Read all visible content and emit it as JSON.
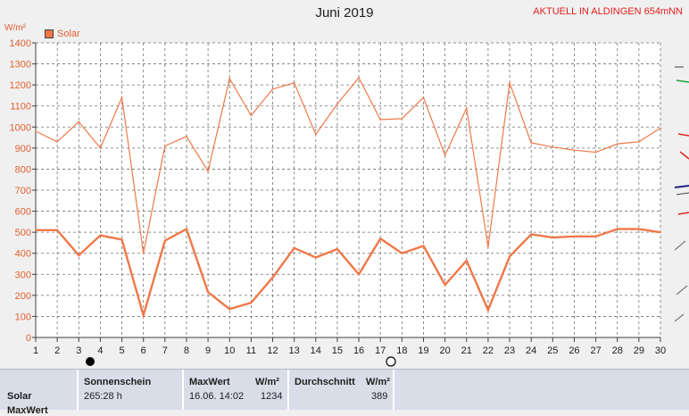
{
  "header": {
    "title": "Juni 2019",
    "banner": "AKTUELL IN ALDINGEN 654mNN"
  },
  "legend": {
    "label": "Solar",
    "color": "#f07848"
  },
  "unit_label": "W/m²",
  "chart_data": {
    "type": "line",
    "title": "Juni 2019",
    "ylabel": "W/m²",
    "xlabel": "",
    "ylim": [
      0,
      1400
    ],
    "xlim": [
      1,
      30
    ],
    "yticks": [
      0,
      100,
      200,
      300,
      400,
      500,
      600,
      700,
      800,
      900,
      1000,
      1100,
      1200,
      1300,
      1400
    ],
    "xticks": [
      1,
      2,
      3,
      4,
      5,
      6,
      7,
      8,
      9,
      10,
      11,
      12,
      13,
      14,
      15,
      16,
      17,
      18,
      19,
      20,
      21,
      22,
      23,
      24,
      25,
      26,
      27,
      28,
      29,
      30
    ],
    "grid": true,
    "legend_position": "top-left",
    "x": [
      1,
      2,
      3,
      4,
      5,
      6,
      7,
      8,
      9,
      10,
      11,
      12,
      13,
      14,
      15,
      16,
      17,
      18,
      19,
      20,
      21,
      22,
      23,
      24,
      25,
      26,
      27,
      28,
      29,
      30
    ],
    "series": [
      {
        "name": "Solar",
        "kind": "daily-max",
        "color": "#f07848",
        "values": [
          980,
          930,
          1025,
          900,
          1140,
          400,
          910,
          955,
          790,
          1230,
          1055,
          1180,
          1210,
          965,
          1110,
          1234,
          1035,
          1040,
          1140,
          865,
          1090,
          430,
          1210,
          925,
          905,
          890,
          880,
          920,
          930,
          995
        ]
      },
      {
        "name": "Solar",
        "kind": "daily-mean",
        "color": "#f07848",
        "values": [
          510,
          510,
          390,
          485,
          465,
          105,
          460,
          515,
          215,
          135,
          165,
          285,
          425,
          380,
          420,
          300,
          470,
          400,
          435,
          250,
          365,
          130,
          385,
          490,
          475,
          480,
          480,
          515,
          515,
          500
        ]
      }
    ]
  },
  "stats": {
    "row_label": "Solar",
    "row_label_2": "MaxWert",
    "sonnenschein": {
      "header": "Sonnenschein",
      "value": "265:28 h"
    },
    "maxwert": {
      "header": "MaxWert",
      "unit": "W/m²",
      "date": "16.06.  14:02",
      "value": "1234"
    },
    "durchschnitt": {
      "header": "Durchschnitt",
      "unit": "W/m²",
      "value": "389"
    }
  }
}
